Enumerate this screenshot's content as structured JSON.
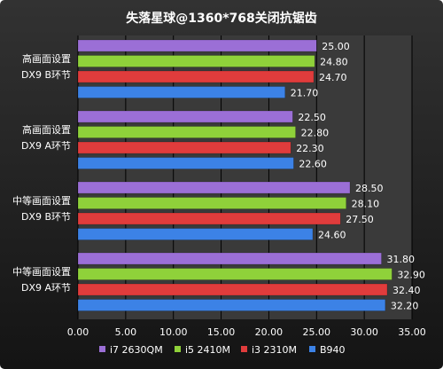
{
  "chart_data": {
    "type": "bar",
    "orientation": "horizontal",
    "title": "失落星球@1360*768关闭抗锯齿",
    "xlabel": "",
    "ylabel": "",
    "xlim": [
      0,
      35
    ],
    "x_ticks": [
      "0.00",
      "5.00",
      "10.00",
      "15.00",
      "20.00",
      "25.00",
      "30.00",
      "35.00"
    ],
    "grid": true,
    "legend_position": "bottom",
    "categories": [
      {
        "line1": "高画面设置",
        "line2": "DX9 B环节"
      },
      {
        "line1": "高画面设置",
        "line2": "DX9 A环节"
      },
      {
        "line1": "中等画面设置",
        "line2": "DX9 B环节"
      },
      {
        "line1": "中等画面设置",
        "line2": "DX9 A环节"
      }
    ],
    "series": [
      {
        "name": "i7 2630QM",
        "color": "#9b6fd6",
        "values": [
          25.0,
          22.5,
          28.5,
          31.8
        ],
        "labels": [
          "25.00",
          "22.50",
          "28.50",
          "31.80"
        ]
      },
      {
        "name": "i5 2410M",
        "color": "#8fd13a",
        "values": [
          24.8,
          22.8,
          28.1,
          32.9
        ],
        "labels": [
          "24.80",
          "22.80",
          "28.10",
          "32.90"
        ]
      },
      {
        "name": "i3 2310M",
        "color": "#e03c3c",
        "values": [
          24.7,
          22.3,
          27.5,
          32.4
        ],
        "labels": [
          "24.70",
          "22.30",
          "27.50",
          "32.40"
        ]
      },
      {
        "name": "B940",
        "color": "#3c82e6",
        "values": [
          21.7,
          22.6,
          24.6,
          32.2
        ],
        "labels": [
          "21.70",
          "22.60",
          "24.60",
          "32.20"
        ]
      }
    ]
  }
}
